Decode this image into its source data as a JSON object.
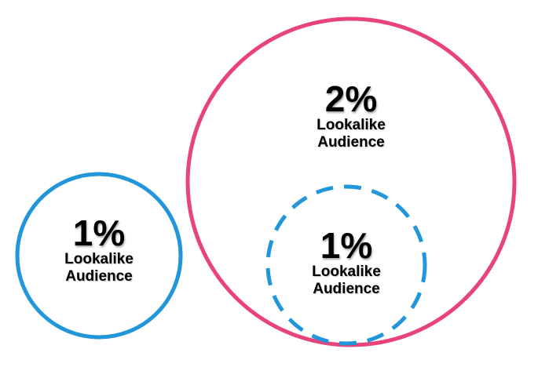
{
  "colors": {
    "blue": "#2196d9",
    "pink": "#e8437a",
    "text": "#000000"
  },
  "small_circle": {
    "percent": "1%",
    "line1": "Lookalike",
    "line2": "Audience"
  },
  "large_circle": {
    "percent": "2%",
    "line1": "Lookalike",
    "line2": "Audience"
  },
  "inner_circle": {
    "percent": "1%",
    "line1": "Lookalike",
    "line2": "Audience"
  }
}
